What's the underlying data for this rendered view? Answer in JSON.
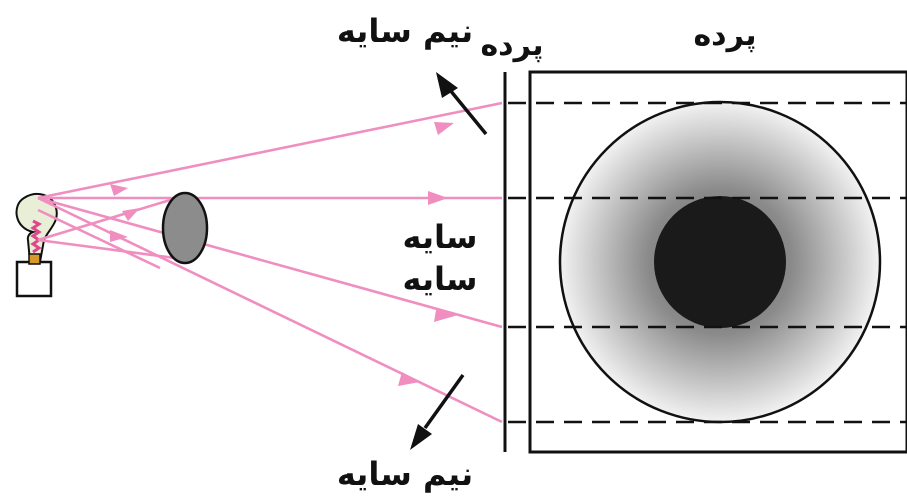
{
  "labels": {
    "screen_top": "پرده",
    "screen_front": "پرده",
    "penumbra_top": "نیم سایه",
    "umbra_1": "سایه",
    "umbra_2": "سایه",
    "penumbra_bottom": "نیم سایه"
  },
  "colors": {
    "ray": "#f08ec0",
    "line": "#111111",
    "umbra": "#1a1a1a",
    "penumbra_inner": "#8a8a8a",
    "penumbra_outer": "#f2f2f2",
    "obstacle": "#8c8c8c",
    "bulb_glass": "#e8efd6",
    "filament": "#e0478a"
  },
  "icons": {
    "light_source": "light-bulb-icon",
    "obstacle": "opaque-disc",
    "arrows": "arrow-icon"
  }
}
